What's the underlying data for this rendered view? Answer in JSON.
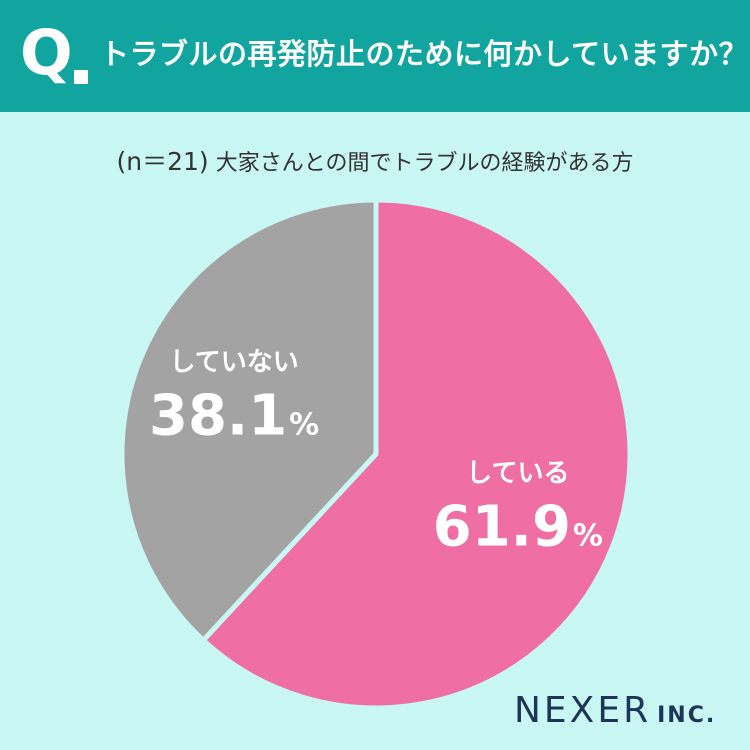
{
  "header": {
    "q_letter": "Q",
    "question": "トラブルの再発防止のために何かしていますか？"
  },
  "subtitle": {
    "n_label": "(n＝21)",
    "description": "大家さんとの間でトラブルの経験がある方"
  },
  "colors": {
    "header_bg": "#12a5a0",
    "background": "#c9f7f3",
    "slice_yes": "#ef6ea3",
    "slice_no": "#a3a3a3",
    "logo": "#1d3557"
  },
  "chart_data": {
    "type": "pie",
    "title": "トラブルの再発防止のために何かしていますか？",
    "n": 21,
    "slices": [
      {
        "label": "している",
        "value": 61.9,
        "display": "61.9",
        "unit": "%",
        "color": "#ef6ea3"
      },
      {
        "label": "していない",
        "value": 38.1,
        "display": "38.1",
        "unit": "%",
        "color": "#a3a3a3"
      }
    ],
    "start": "top",
    "direction": "clockwise"
  },
  "logo": {
    "name": "NEXER",
    "suffix": "INC."
  }
}
